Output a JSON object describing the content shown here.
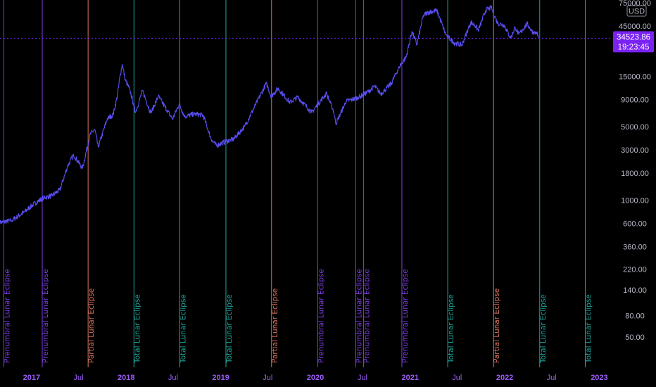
{
  "chart_data": {
    "type": "line",
    "title": "",
    "yscale": "log",
    "ylim": [
      30,
      75000
    ],
    "xlim": [
      "2016-09-01",
      "2023-02-15"
    ],
    "ylabel": "",
    "xlabel": "",
    "grid": false,
    "series": [
      {
        "color": "#5b4ff7",
        "x": [
          "2016-09-01",
          "2016-10-15",
          "2016-12-01",
          "2017-01-05",
          "2017-02-15",
          "2017-03-20",
          "2017-04-20",
          "2017-05-20",
          "2017-06-12",
          "2017-07-16",
          "2017-08-15",
          "2017-09-02",
          "2017-09-15",
          "2017-10-20",
          "2017-11-12",
          "2017-11-28",
          "2017-12-08",
          "2017-12-17",
          "2017-12-28",
          "2018-01-16",
          "2018-02-06",
          "2018-03-05",
          "2018-04-06",
          "2018-05-05",
          "2018-06-29",
          "2018-07-25",
          "2018-08-14",
          "2018-09-20",
          "2018-10-25",
          "2018-11-25",
          "2018-12-15",
          "2019-01-20",
          "2019-02-20",
          "2019-04-03",
          "2019-05-15",
          "2019-06-26",
          "2019-07-15",
          "2019-08-10",
          "2019-09-25",
          "2019-10-26",
          "2019-12-18",
          "2020-01-20",
          "2020-02-13",
          "2020-03-12",
          "2020-03-20",
          "2020-04-29",
          "2020-06-15",
          "2020-07-27",
          "2020-08-17",
          "2020-09-10",
          "2020-10-21",
          "2020-11-20",
          "2020-12-17",
          "2021-01-08",
          "2021-01-27",
          "2021-02-21",
          "2021-03-13",
          "2021-04-14",
          "2021-05-19",
          "2021-06-22",
          "2021-07-20",
          "2021-08-23",
          "2021-09-07",
          "2021-09-21",
          "2021-10-20",
          "2021-11-10",
          "2021-11-26",
          "2021-12-04",
          "2021-12-30",
          "2022-01-24",
          "2022-02-10",
          "2022-02-24",
          "2022-03-29",
          "2022-04-10",
          "2022-04-25",
          "2022-05-05",
          "2022-05-12"
        ],
        "y": [
          610,
          640,
          760,
          900,
          1050,
          1100,
          1250,
          2100,
          2700,
          2000,
          4200,
          4700,
          3200,
          5900,
          6500,
          9800,
          15000,
          19500,
          14000,
          11000,
          6800,
          11000,
          6700,
          9700,
          5900,
          8200,
          6200,
          6600,
          6400,
          3800,
          3300,
          3600,
          3800,
          5000,
          8000,
          12900,
          9700,
          11500,
          8500,
          9500,
          6800,
          8700,
          10300,
          7000,
          5300,
          8700,
          9400,
          10900,
          12100,
          10200,
          12900,
          18500,
          23000,
          40000,
          30000,
          57000,
          61000,
          63500,
          37000,
          31000,
          29800,
          49000,
          46000,
          41000,
          64000,
          67500,
          54000,
          48000,
          46000,
          34500,
          44000,
          37500,
          47500,
          42000,
          38500,
          39500,
          34524
        ]
      }
    ],
    "current_price": {
      "value": "34523.86",
      "countdown": "19:23:45",
      "y": 34523.86
    },
    "currency_label": "USD",
    "y_ticks": [
      {
        "label": "75000.00",
        "value": 75000
      },
      {
        "label": "45000.00",
        "value": 45000
      },
      {
        "label": "15000.00",
        "value": 15000
      },
      {
        "label": "9000.00",
        "value": 9000
      },
      {
        "label": "5000.00",
        "value": 5000
      },
      {
        "label": "3000.00",
        "value": 3000
      },
      {
        "label": "1800.00",
        "value": 1800
      },
      {
        "label": "1000.00",
        "value": 1000
      },
      {
        "label": "600.00",
        "value": 600
      },
      {
        "label": "360.00",
        "value": 360
      },
      {
        "label": "220.00",
        "value": 220
      },
      {
        "label": "140.00",
        "value": 140
      },
      {
        "label": "80.00",
        "value": 80
      },
      {
        "label": "50.00",
        "value": 50
      }
    ],
    "x_ticks": [
      {
        "label": "2017",
        "date": "2017-01-01",
        "year": true
      },
      {
        "label": "Jul",
        "date": "2017-07-01",
        "year": false
      },
      {
        "label": "2018",
        "date": "2018-01-01",
        "year": true
      },
      {
        "label": "Jul",
        "date": "2018-07-01",
        "year": false
      },
      {
        "label": "2019",
        "date": "2019-01-01",
        "year": true
      },
      {
        "label": "Jul",
        "date": "2019-07-01",
        "year": false
      },
      {
        "label": "2020",
        "date": "2020-01-01",
        "year": true
      },
      {
        "label": "Jul",
        "date": "2020-07-01",
        "year": false
      },
      {
        "label": "2021",
        "date": "2021-01-01",
        "year": true
      },
      {
        "label": "Jul",
        "date": "2021-07-01",
        "year": false
      },
      {
        "label": "2022",
        "date": "2022-01-01",
        "year": true
      },
      {
        "label": "Jul",
        "date": "2022-07-01",
        "year": false
      },
      {
        "label": "2023",
        "date": "2023-01-01",
        "year": true
      }
    ],
    "events": [
      {
        "date": "2016-09-16",
        "label": "Prenumbral Lunar Eclipse",
        "kind": "penumbral"
      },
      {
        "date": "2017-02-11",
        "label": "Prenumbral Lunar Eclipse",
        "kind": "penumbral"
      },
      {
        "date": "2017-08-07",
        "label": "Partial Lunar Eclipse",
        "kind": "partial"
      },
      {
        "date": "2018-01-31",
        "label": "Total Lunar Eclipse",
        "kind": "total"
      },
      {
        "date": "2018-07-27",
        "label": "Total Lunar Eclipse",
        "kind": "total"
      },
      {
        "date": "2019-01-21",
        "label": "Total Lunar Eclipse",
        "kind": "total"
      },
      {
        "date": "2019-07-16",
        "label": "Partial Lunar Eclipse",
        "kind": "partial"
      },
      {
        "date": "2020-01-10",
        "label": "Prenumbral Lunar Eclipse",
        "kind": "penumbral"
      },
      {
        "date": "2020-06-05",
        "label": "Prenumbral Lunar Eclipse",
        "kind": "penumbral"
      },
      {
        "date": "2020-07-05",
        "label": "Prenumbral Lunar Eclipse",
        "kind": "penumbral"
      },
      {
        "date": "2020-11-30",
        "label": "Prenumbral Lunar Eclipse",
        "kind": "penumbral"
      },
      {
        "date": "2021-05-26",
        "label": "Total Lunar Eclipse",
        "kind": "total"
      },
      {
        "date": "2021-11-19",
        "label": "Partial Lunar Eclipse",
        "kind": "partial"
      },
      {
        "date": "2022-05-16",
        "label": "Total Lunar Eclipse",
        "kind": "total"
      },
      {
        "date": "2022-11-08",
        "label": "Total Lunar Eclipse",
        "kind": "total"
      }
    ],
    "colors": {
      "background": "#000000",
      "line": "#5b4ff7",
      "penumbral": "#7b3fe0",
      "partial": "#d9735f",
      "total": "#1fa59a",
      "price_label_bg": "#7a22f2",
      "x_tick_text": "#9b5cf6",
      "y_tick_text": "#b8b8c8"
    }
  }
}
